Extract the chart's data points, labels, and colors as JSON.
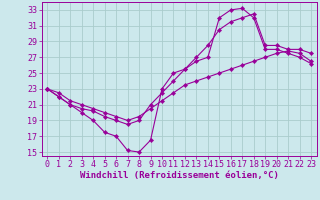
{
  "background_color": "#cce8ec",
  "grid_color": "#aacccc",
  "line_color": "#990099",
  "xlabel": "Windchill (Refroidissement éolien,°C)",
  "xlabel_fontsize": 6.5,
  "tick_fontsize": 6.0,
  "xlim": [
    -0.5,
    23.5
  ],
  "ylim": [
    14.5,
    34.0
  ],
  "yticks": [
    15,
    17,
    19,
    21,
    23,
    25,
    27,
    29,
    31,
    33
  ],
  "xticks": [
    0,
    1,
    2,
    3,
    4,
    5,
    6,
    7,
    8,
    9,
    10,
    11,
    12,
    13,
    14,
    15,
    16,
    17,
    18,
    19,
    20,
    21,
    22,
    23
  ],
  "curve1_x": [
    0,
    1,
    2,
    3,
    4,
    5,
    6,
    7,
    8,
    9,
    10,
    11,
    12,
    13,
    14,
    15,
    16,
    17,
    18,
    19,
    20,
    21,
    22,
    23
  ],
  "curve1_y": [
    23,
    22,
    21,
    20,
    19,
    17.5,
    17,
    15.2,
    15,
    16.5,
    23,
    25,
    25.5,
    26.5,
    27,
    32,
    33,
    33.2,
    32,
    28,
    28,
    27.5,
    27,
    26.2
  ],
  "curve2_x": [
    0,
    1,
    2,
    3,
    4,
    5,
    6,
    7,
    8,
    9,
    10,
    11,
    12,
    13,
    14,
    15,
    16,
    17,
    18,
    19,
    20,
    21,
    22,
    23
  ],
  "curve2_y": [
    23,
    22,
    21,
    20.5,
    20.2,
    19.5,
    19,
    18.5,
    19,
    21,
    22.5,
    24,
    25.5,
    27,
    28.5,
    30.5,
    31.5,
    32,
    32.5,
    28.5,
    28.5,
    28,
    28,
    27.5
  ],
  "curve3_x": [
    0,
    1,
    2,
    3,
    4,
    5,
    6,
    7,
    8,
    9,
    10,
    11,
    12,
    13,
    14,
    15,
    16,
    17,
    18,
    19,
    20,
    21,
    22,
    23
  ],
  "curve3_y": [
    23,
    22.5,
    21.5,
    21,
    20.5,
    20,
    19.5,
    19,
    19.5,
    20.5,
    21.5,
    22.5,
    23.5,
    24,
    24.5,
    25,
    25.5,
    26,
    26.5,
    27,
    27.5,
    27.8,
    27.5,
    26.5
  ]
}
